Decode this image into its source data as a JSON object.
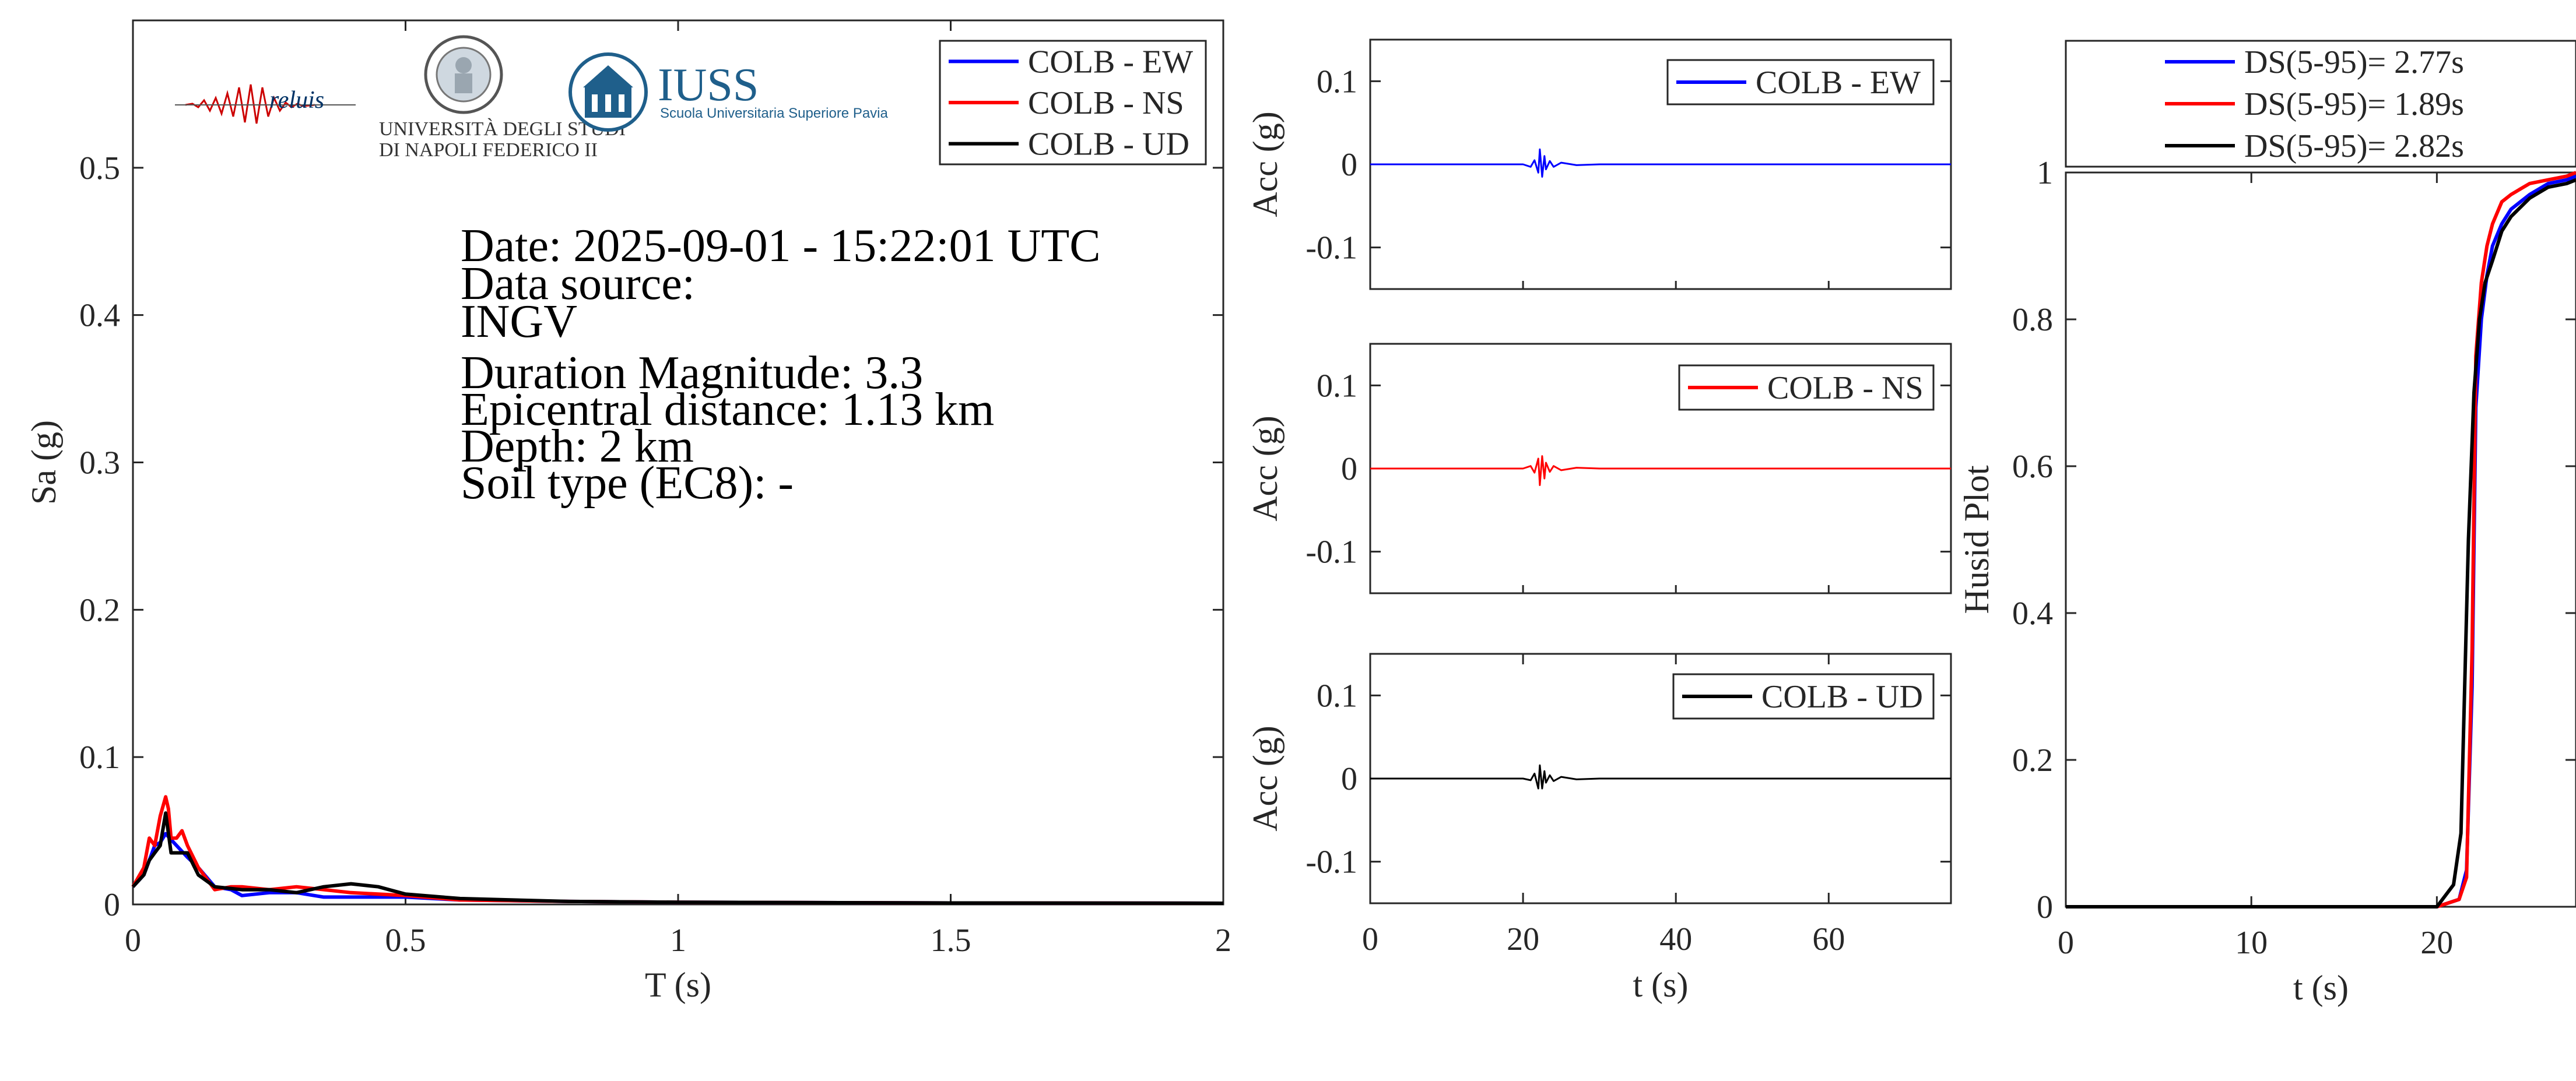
{
  "colors": {
    "ew": "#0000ff",
    "ns": "#ff0000",
    "ud": "#000000",
    "axis": "#262626",
    "iuss": "#1f5f8b"
  },
  "logos": {
    "reluis": "reluis",
    "unina_line1": "UNIVERSITÀ DEGLI STUDI",
    "unina_line2": "DI NAPOLI FEDERICO II",
    "iuss_title": "IUSS",
    "iuss_subtitle": "Scuola Universitaria Superiore Pavia",
    "icons": [
      "seismogram-logo-icon",
      "university-seal-icon",
      "iuss-building-icon"
    ]
  },
  "info": {
    "date": "Date: 2025-09-01 - 15:22:01 UTC",
    "source_label": "Data source:",
    "source_value": "INGV",
    "magnitude": "Duration Magnitude: 3.3",
    "distance": "Epicentral distance: 1.13 km",
    "depth": "Depth: 2 km",
    "soil": "Soil type (EC8): -"
  },
  "chart_data": [
    {
      "id": "spectrum",
      "type": "line",
      "xlabel": "T (s)",
      "ylabel": "Sa (g)",
      "xlim": [
        0,
        2
      ],
      "ylim": [
        0,
        0.6
      ],
      "xticks": [
        0,
        0.5,
        1,
        1.5,
        2
      ],
      "xtick_labels": [
        "0",
        "0.5",
        "1",
        "1.5",
        "2"
      ],
      "yticks": [
        0,
        0.1,
        0.2,
        0.3,
        0.4,
        0.5
      ],
      "ytick_labels": [
        "0",
        "0.1",
        "0.2",
        "0.3",
        "0.4",
        "0.5"
      ],
      "legend": "top-right",
      "grid": false,
      "series": [
        {
          "name": "COLB - EW",
          "color": "#0000ff",
          "x": [
            0,
            0.02,
            0.03,
            0.04,
            0.05,
            0.06,
            0.07,
            0.08,
            0.1,
            0.12,
            0.15,
            0.18,
            0.2,
            0.25,
            0.3,
            0.35,
            0.4,
            0.5,
            0.6,
            0.8,
            1.0,
            1.5,
            2.0
          ],
          "y": [
            0.012,
            0.02,
            0.03,
            0.04,
            0.042,
            0.048,
            0.044,
            0.04,
            0.032,
            0.025,
            0.012,
            0.01,
            0.006,
            0.008,
            0.008,
            0.005,
            0.005,
            0.005,
            0.003,
            0.002,
            0.0015,
            0.001,
            0.0008
          ]
        },
        {
          "name": "COLB - NS",
          "color": "#ff0000",
          "x": [
            0,
            0.02,
            0.03,
            0.04,
            0.05,
            0.06,
            0.065,
            0.07,
            0.08,
            0.09,
            0.1,
            0.12,
            0.15,
            0.18,
            0.2,
            0.25,
            0.3,
            0.35,
            0.4,
            0.5,
            0.6,
            0.8,
            1.0,
            1.5,
            2.0
          ],
          "y": [
            0.012,
            0.025,
            0.045,
            0.04,
            0.06,
            0.073,
            0.065,
            0.045,
            0.045,
            0.05,
            0.04,
            0.025,
            0.01,
            0.012,
            0.012,
            0.01,
            0.012,
            0.01,
            0.008,
            0.006,
            0.003,
            0.002,
            0.0015,
            0.001,
            0.0008
          ]
        },
        {
          "name": "COLB - UD",
          "color": "#000000",
          "x": [
            0,
            0.02,
            0.03,
            0.04,
            0.05,
            0.06,
            0.07,
            0.08,
            0.1,
            0.12,
            0.15,
            0.2,
            0.25,
            0.3,
            0.35,
            0.4,
            0.45,
            0.5,
            0.6,
            0.8,
            1.0,
            1.5,
            2.0
          ],
          "y": [
            0.012,
            0.02,
            0.03,
            0.035,
            0.04,
            0.062,
            0.035,
            0.035,
            0.035,
            0.02,
            0.012,
            0.01,
            0.01,
            0.008,
            0.012,
            0.014,
            0.012,
            0.007,
            0.004,
            0.002,
            0.0015,
            0.001,
            0.0008
          ]
        }
      ]
    },
    {
      "id": "acc-ew",
      "type": "line",
      "ylabel": "Acc (g)",
      "xlim": [
        0,
        76
      ],
      "ylim": [
        -0.15,
        0.15
      ],
      "yticks": [
        -0.1,
        0,
        0.1
      ],
      "ytick_labels": [
        "-0.1",
        "0",
        "0.1"
      ],
      "legend": "top-right",
      "series": [
        {
          "name": "COLB - EW",
          "color": "#0000ff",
          "x": [
            0,
            20,
            21,
            21.5,
            22,
            22.2,
            22.5,
            22.8,
            23,
            23.5,
            24,
            25,
            27,
            30,
            76
          ],
          "y": [
            0,
            0,
            -0.003,
            0.005,
            -0.01,
            0.018,
            -0.015,
            0.01,
            -0.006,
            0.004,
            -0.003,
            0.002,
            -0.001,
            0,
            0
          ]
        }
      ]
    },
    {
      "id": "acc-ns",
      "type": "line",
      "ylabel": "Acc (g)",
      "xlim": [
        0,
        76
      ],
      "ylim": [
        -0.15,
        0.15
      ],
      "yticks": [
        -0.1,
        0,
        0.1
      ],
      "ytick_labels": [
        "-0.1",
        "0",
        "0.1"
      ],
      "legend": "top-right",
      "series": [
        {
          "name": "COLB - NS",
          "color": "#ff0000",
          "x": [
            0,
            20,
            21,
            21.5,
            22,
            22.2,
            22.5,
            22.8,
            23,
            23.5,
            24,
            25,
            27,
            30,
            76
          ],
          "y": [
            0,
            0,
            0.003,
            -0.005,
            0.012,
            -0.02,
            0.015,
            -0.012,
            0.007,
            -0.004,
            0.003,
            -0.002,
            0.001,
            0,
            0
          ]
        }
      ]
    },
    {
      "id": "acc-ud",
      "type": "line",
      "xlabel": "t (s)",
      "ylabel": "Acc (g)",
      "xlim": [
        0,
        76
      ],
      "ylim": [
        -0.15,
        0.15
      ],
      "xticks": [
        0,
        20,
        40,
        60
      ],
      "xtick_labels": [
        "0",
        "20",
        "40",
        "60"
      ],
      "yticks": [
        -0.1,
        0,
        0.1
      ],
      "ytick_labels": [
        "-0.1",
        "0",
        "0.1"
      ],
      "legend": "top-right",
      "series": [
        {
          "name": "COLB - UD",
          "color": "#000000",
          "x": [
            0,
            20,
            21,
            21.5,
            22,
            22.2,
            22.5,
            22.8,
            23,
            23.5,
            24,
            25,
            27,
            30,
            76
          ],
          "y": [
            0,
            0,
            -0.002,
            0.006,
            -0.012,
            0.016,
            -0.012,
            0.009,
            -0.005,
            0.004,
            -0.003,
            0.002,
            -0.001,
            0,
            0
          ]
        }
      ]
    },
    {
      "id": "husid",
      "type": "line",
      "xlabel": "t (s)",
      "ylabel": "Husid Plot",
      "xlim": [
        0,
        27.5
      ],
      "ylim": [
        0,
        1
      ],
      "xticks": [
        0,
        10,
        20
      ],
      "xtick_labels": [
        "0",
        "10",
        "20"
      ],
      "yticks": [
        0,
        0.2,
        0.4,
        0.6,
        0.8,
        1
      ],
      "ytick_labels": [
        "0",
        "0.2",
        "0.4",
        "0.6",
        "0.8",
        "1"
      ],
      "legend": "outside-top",
      "series": [
        {
          "name": "DS(5-95)= 2.77s",
          "color": "#0000ff",
          "x": [
            0,
            20,
            21.2,
            21.6,
            21.9,
            22.1,
            22.4,
            22.7,
            23,
            23.5,
            24,
            25,
            26,
            27,
            27.5
          ],
          "y": [
            0,
            0,
            0.01,
            0.05,
            0.3,
            0.68,
            0.8,
            0.86,
            0.9,
            0.93,
            0.95,
            0.97,
            0.985,
            0.99,
            0.995
          ]
        },
        {
          "name": "DS(5-95)= 1.89s",
          "color": "#ff0000",
          "x": [
            0,
            20,
            21.2,
            21.6,
            21.9,
            22.1,
            22.4,
            22.7,
            23,
            23.5,
            24,
            25,
            26,
            27,
            27.5
          ],
          "y": [
            0,
            0,
            0.01,
            0.04,
            0.35,
            0.75,
            0.85,
            0.9,
            0.93,
            0.96,
            0.97,
            0.985,
            0.99,
            0.995,
            1.0
          ]
        },
        {
          "name": "DS(5-95)= 2.82s",
          "color": "#000000",
          "x": [
            0,
            20,
            20.9,
            21.3,
            21.7,
            22.0,
            22.3,
            22.6,
            23,
            23.5,
            24,
            25,
            26,
            27,
            27.5
          ],
          "y": [
            0,
            0,
            0.03,
            0.1,
            0.5,
            0.7,
            0.8,
            0.85,
            0.88,
            0.92,
            0.94,
            0.965,
            0.98,
            0.985,
            0.99
          ]
        }
      ]
    }
  ]
}
